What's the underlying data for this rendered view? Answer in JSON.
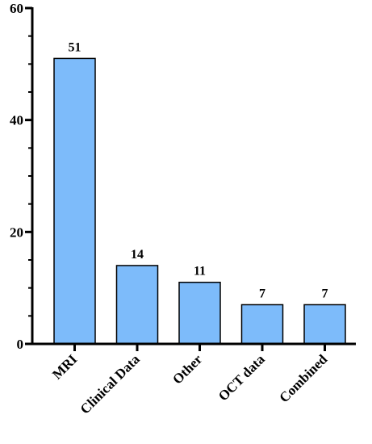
{
  "chart_data": {
    "type": "bar",
    "categories": [
      "MRI",
      "Clinical Data",
      "Other",
      "OCT data",
      "Combined"
    ],
    "values": [
      51,
      14,
      11,
      7,
      7
    ],
    "data_labels": [
      "51",
      "14",
      "11",
      "7",
      "7"
    ],
    "ylim": [
      0,
      60
    ],
    "yticks": [
      0,
      20,
      40,
      60
    ],
    "ytick_labels": [
      "0",
      "20",
      "40",
      "60"
    ],
    "bar_color": "#7dbbfa",
    "grid": false,
    "legend": "none"
  }
}
